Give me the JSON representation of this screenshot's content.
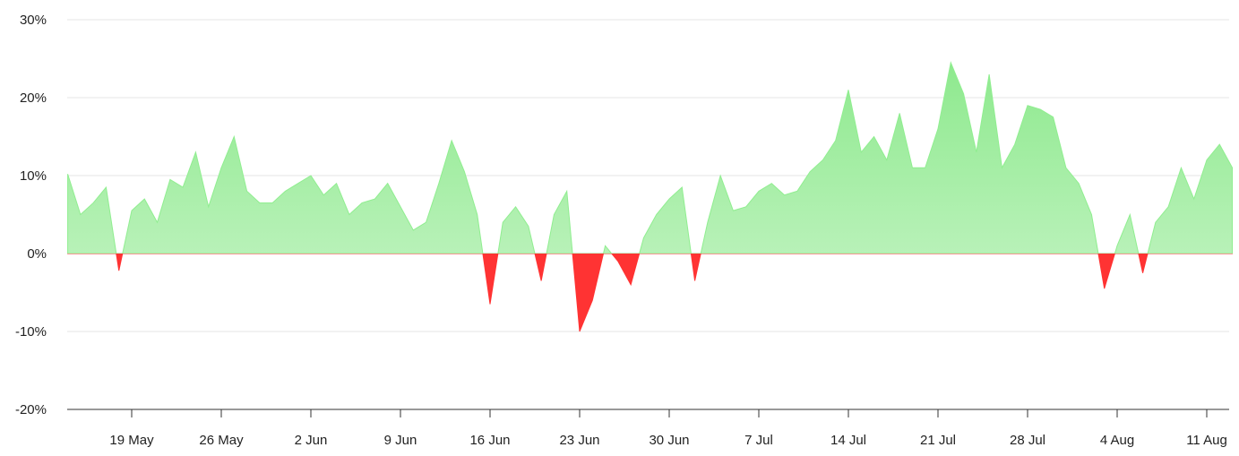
{
  "chart_data": {
    "type": "area",
    "title": "",
    "xlabel": "",
    "ylabel": "",
    "ylim": [
      -20,
      30
    ],
    "y_ticks": [
      "30%",
      "20%",
      "10%",
      "0%",
      "-10%",
      "-20%"
    ],
    "y_tick_values": [
      30,
      20,
      10,
      0,
      -10,
      -20
    ],
    "x_ticks": [
      "19 May",
      "26 May",
      "2 Jun",
      "9 Jun",
      "16 Jun",
      "23 Jun",
      "30 Jun",
      "7 Jul",
      "14 Jul",
      "21 Jul",
      "28 Jul",
      "4 Aug",
      "11 Aug"
    ],
    "x_tick_dates": [
      "2024-05-19",
      "2024-05-26",
      "2024-06-02",
      "2024-06-09",
      "2024-06-16",
      "2024-06-23",
      "2024-06-30",
      "2024-07-07",
      "2024-07-14",
      "2024-07-21",
      "2024-07-28",
      "2024-08-04",
      "2024-08-11"
    ],
    "grid": true,
    "colors": {
      "positive": "#90ee90",
      "positive_fill_top": "#8fe88f",
      "positive_fill_bottom": "#c8f5c8",
      "negative": "#ff3333"
    },
    "x": [
      "2024-05-14",
      "2024-05-15",
      "2024-05-16",
      "2024-05-17",
      "2024-05-18",
      "2024-05-19",
      "2024-05-20",
      "2024-05-21",
      "2024-05-22",
      "2024-05-23",
      "2024-05-24",
      "2024-05-25",
      "2024-05-26",
      "2024-05-27",
      "2024-05-28",
      "2024-05-29",
      "2024-05-30",
      "2024-05-31",
      "2024-06-01",
      "2024-06-02",
      "2024-06-03",
      "2024-06-04",
      "2024-06-05",
      "2024-06-06",
      "2024-06-07",
      "2024-06-08",
      "2024-06-09",
      "2024-06-10",
      "2024-06-11",
      "2024-06-12",
      "2024-06-13",
      "2024-06-14",
      "2024-06-15",
      "2024-06-16",
      "2024-06-17",
      "2024-06-18",
      "2024-06-19",
      "2024-06-20",
      "2024-06-21",
      "2024-06-22",
      "2024-06-23",
      "2024-06-24",
      "2024-06-25",
      "2024-06-26",
      "2024-06-27",
      "2024-06-28",
      "2024-06-29",
      "2024-06-30",
      "2024-07-01",
      "2024-07-02",
      "2024-07-03",
      "2024-07-04",
      "2024-07-05",
      "2024-07-06",
      "2024-07-07",
      "2024-07-08",
      "2024-07-09",
      "2024-07-10",
      "2024-07-11",
      "2024-07-12",
      "2024-07-13",
      "2024-07-14",
      "2024-07-15",
      "2024-07-16",
      "2024-07-17",
      "2024-07-18",
      "2024-07-19",
      "2024-07-20",
      "2024-07-21",
      "2024-07-22",
      "2024-07-23",
      "2024-07-24",
      "2024-07-25",
      "2024-07-26",
      "2024-07-27",
      "2024-07-28",
      "2024-07-29",
      "2024-07-30",
      "2024-07-31",
      "2024-08-01",
      "2024-08-02",
      "2024-08-03",
      "2024-08-04",
      "2024-08-05",
      "2024-08-06",
      "2024-08-07",
      "2024-08-08",
      "2024-08-09",
      "2024-08-10",
      "2024-08-11",
      "2024-08-12",
      "2024-08-13"
    ],
    "series": [
      {
        "values": [
          10.2,
          5.0,
          6.5,
          8.5,
          -2.2,
          5.5,
          7.0,
          4.0,
          9.5,
          8.5,
          13.0,
          6.0,
          11.0,
          15.0,
          8.0,
          6.5,
          6.5,
          8.0,
          9.0,
          10.0,
          7.5,
          9.0,
          5.0,
          6.5,
          7.0,
          9.0,
          6.0,
          3.0,
          4.0,
          9.0,
          14.5,
          10.5,
          5.0,
          -6.5,
          4.0,
          6.0,
          3.5,
          -3.5,
          5.0,
          8.0,
          -10.0,
          -6.0,
          1.0,
          -1.0,
          -4.0,
          2.0,
          5.0,
          7.0,
          8.5,
          -3.5,
          4.0,
          10.0,
          5.5,
          6.0,
          8.0,
          9.0,
          7.5,
          8.0,
          10.5,
          12.0,
          14.5,
          21.0,
          13.0,
          15.0,
          12.0,
          18.0,
          11.0,
          11.0,
          16.0,
          24.5,
          20.5,
          13.0,
          23.0,
          11.0,
          14.0,
          19.0,
          18.5,
          17.5,
          11.0,
          9.0,
          5.0,
          -4.5,
          1.0,
          5.0,
          -2.5,
          4.0,
          6.0,
          11.0,
          7.0,
          12.0,
          14.0,
          11.0
        ]
      }
    ]
  }
}
